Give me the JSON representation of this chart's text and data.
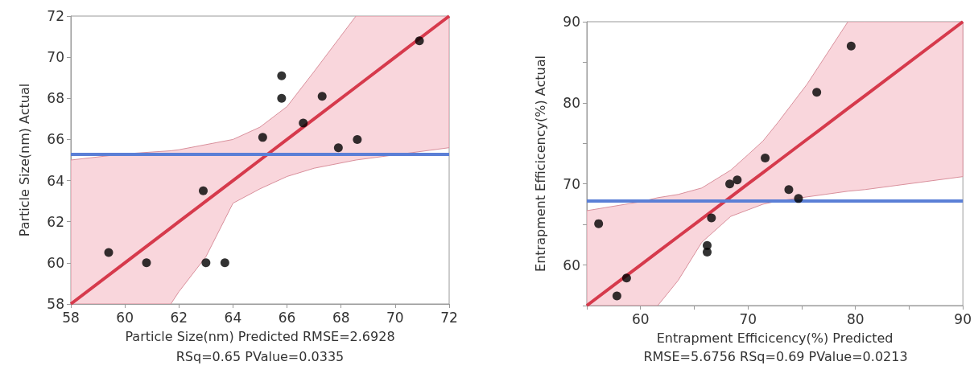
{
  "chart_data": [
    {
      "type": "scatter",
      "xlabel": "Particle Size(nm) Predicted RMSE=2.6928",
      "ylabel": "Particle Size(nm) Actual",
      "annotations": [
        "RSq=0.65 PValue=0.0335"
      ],
      "xlim": [
        58,
        72
      ],
      "ylim": [
        58,
        72
      ],
      "xticks": [
        58,
        60,
        62,
        64,
        66,
        68,
        70,
        72
      ],
      "yticks": [
        58,
        60,
        62,
        64,
        66,
        68,
        70,
        72
      ],
      "grid": false,
      "marker": "circle",
      "series": [
        {
          "color": "#000000",
          "x": [
            59.4,
            60.8,
            62.9,
            63.0,
            63.7,
            65.1,
            65.8,
            65.8,
            66.6,
            67.3,
            67.9,
            68.6,
            70.9
          ],
          "values": [
            60.5,
            60,
            63.5,
            60,
            60,
            66.1,
            69.1,
            68,
            66.8,
            68.1,
            65.6,
            66,
            70.8
          ]
        },
        {
          "type": "line",
          "color": "#d63a4c",
          "marker": "none",
          "x": [
            58,
            60,
            61.7,
            62,
            63,
            64,
            65,
            66,
            67,
            68.55,
            70,
            72
          ],
          "values": [
            58,
            60,
            61.7,
            62,
            63,
            64,
            65,
            66,
            67,
            68.55,
            70,
            72
          ],
          "lower": [
            58,
            58,
            58,
            58.6,
            60.3,
            62.9,
            63.6,
            64.2,
            64.6,
            65.0,
            65.25,
            65.6
          ],
          "upper": [
            65.0,
            65.3,
            65.45,
            65.5,
            65.75,
            66.0,
            66.6,
            67.6,
            69.3,
            72,
            72,
            72
          ]
        }
      ],
      "ref_lines": [
        {
          "axis": "y",
          "value": 65.3,
          "color": "#5b7fd6"
        }
      ]
    },
    {
      "type": "scatter",
      "xlabel": "Entrapment Efficicency(%) Predicted",
      "ylabel": "Entrapment Efficicency(%) Actual",
      "annotations": [
        "RMSE=5.6756 RSq=0.69 PValue=0.0213"
      ],
      "xlim": [
        55,
        90
      ],
      "ylim": [
        55,
        90
      ],
      "xticks": [
        {
          "value": 55,
          "label": null
        },
        60,
        {
          "value": 65,
          "label": null
        },
        70,
        {
          "value": 75,
          "label": null
        },
        80,
        {
          "value": 85,
          "label": null
        },
        90
      ],
      "yticks": [
        {
          "value": 55,
          "label": null
        },
        60,
        {
          "value": 65,
          "label": null
        },
        70,
        {
          "value": 75,
          "label": null
        },
        80,
        {
          "value": 85,
          "label": null
        },
        90
      ],
      "grid": false,
      "marker": "circle",
      "series": [
        {
          "color": "#000000",
          "x": [
            56.1,
            57.8,
            58.7,
            66.2,
            66.2,
            66.6,
            68.3,
            69.0,
            71.6,
            73.8,
            74.7,
            76.4,
            79.6
          ],
          "values": [
            65.1,
            56.2,
            58.4,
            62.4,
            61.6,
            65.8,
            70.0,
            70.5,
            73.2,
            69.3,
            68.2,
            81.3,
            87.0
          ]
        },
        {
          "type": "line",
          "color": "#d63a4c",
          "marker": "none",
          "x": [
            55,
            60,
            61.6,
            63.5,
            65.7,
            68.4,
            70,
            71.4,
            72.8,
            75.5,
            79.3,
            80.9,
            90
          ],
          "values": [
            55,
            60,
            61.6,
            63.5,
            65.7,
            68.4,
            70,
            71.4,
            72.8,
            75.5,
            79.3,
            80.9,
            90
          ],
          "lower": [
            55,
            55,
            55,
            58.1,
            62.8,
            66.0,
            66.8,
            67.5,
            67.9,
            68.4,
            69.1,
            69.3,
            70.9
          ],
          "upper": [
            66.7,
            67.8,
            68.3,
            68.7,
            69.5,
            71.7,
            73.6,
            75.3,
            77.6,
            82.3,
            90,
            90,
            90
          ]
        }
      ],
      "ref_lines": [
        {
          "axis": "y",
          "value": 67.9,
          "color": "#5b7fd6"
        }
      ]
    }
  ]
}
